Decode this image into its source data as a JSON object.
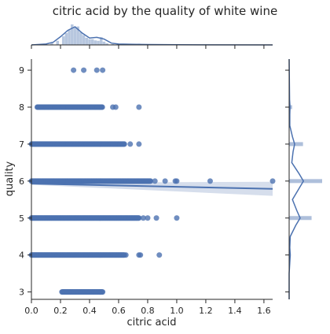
{
  "chart_data": {
    "type": "scatter",
    "title": "citric acid by the quality of white wine",
    "xlabel": "citric acid",
    "ylabel": "quality",
    "xlim": [
      0.0,
      1.66
    ],
    "ylim": [
      2.8,
      9.3
    ],
    "x_ticks": [
      "0.0",
      "0.2",
      "0.4",
      "0.6",
      "0.8",
      "1.0",
      "1.2",
      "1.4",
      "1.6"
    ],
    "y_ticks": [
      "3",
      "4",
      "5",
      "6",
      "7",
      "8",
      "9"
    ],
    "grid": false,
    "legend": "none",
    "colors": {
      "points": "#4c72b0",
      "fill": "#c8d3e6",
      "line": "#4c72b0"
    },
    "strips": [
      {
        "quality": 3,
        "ranges": [
          [
            0.21,
            0.49
          ]
        ],
        "extra": []
      },
      {
        "quality": 4,
        "ranges": [
          [
            0.0,
            0.64
          ]
        ],
        "extra": [
          0.65,
          0.74,
          0.75,
          0.88
        ]
      },
      {
        "quality": 5,
        "ranges": [
          [
            0.0,
            0.74
          ]
        ],
        "extra": [
          0.77,
          0.8,
          0.86,
          1.0
        ]
      },
      {
        "quality": 6,
        "ranges": [
          [
            0.0,
            0.82
          ]
        ],
        "extra": [
          0.85,
          0.92,
          0.99,
          1.0,
          1.23,
          1.66
        ]
      },
      {
        "quality": 7,
        "ranges": [
          [
            0.0,
            0.64
          ]
        ],
        "extra": [
          0.68,
          0.74
        ]
      },
      {
        "quality": 8,
        "ranges": [
          [
            0.04,
            0.49
          ]
        ],
        "extra": [
          0.56,
          0.58,
          0.74
        ]
      },
      {
        "quality": 9,
        "ranges": [],
        "extra": [
          0.29,
          0.36,
          0.45,
          0.49
        ]
      }
    ],
    "regression": {
      "x": [
        0.0,
        1.66
      ],
      "y": [
        5.93,
        5.79
      ],
      "ci_low": [
        5.9,
        5.6
      ],
      "ci_high": [
        5.96,
        5.98
      ]
    },
    "top_marginal": {
      "hist_x": [
        0.02,
        0.06,
        0.1,
        0.14,
        0.18,
        0.22,
        0.24,
        0.26,
        0.28,
        0.3,
        0.32,
        0.34,
        0.36,
        0.38,
        0.4,
        0.42,
        0.44,
        0.46,
        0.48,
        0.5,
        0.52,
        0.56,
        0.6,
        0.66,
        0.74
      ],
      "hist_h": [
        0.02,
        0.03,
        0.05,
        0.1,
        0.2,
        0.42,
        0.58,
        0.72,
        1.0,
        0.85,
        0.9,
        0.62,
        0.48,
        0.35,
        0.28,
        0.28,
        0.22,
        0.2,
        0.38,
        0.16,
        0.08,
        0.04,
        0.03,
        0.02,
        0.06
      ],
      "kde_x": [
        0.0,
        0.1,
        0.15,
        0.2,
        0.25,
        0.3,
        0.35,
        0.4,
        0.45,
        0.5,
        0.55,
        0.6,
        0.7,
        0.8,
        1.0,
        1.66
      ],
      "kde_y": [
        0.0,
        0.05,
        0.15,
        0.45,
        0.8,
        1.0,
        0.65,
        0.38,
        0.42,
        0.32,
        0.1,
        0.05,
        0.03,
        0.02,
        0.01,
        0.0
      ]
    },
    "right_marginal": {
      "hist": [
        {
          "q": 4,
          "h": 0.05
        },
        {
          "q": 5,
          "h": 0.68
        },
        {
          "q": 6,
          "h": 1.0
        },
        {
          "q": 7,
          "h": 0.42
        },
        {
          "q": 8,
          "h": 0.09
        }
      ],
      "kde_q": [
        2.8,
        3.5,
        3.8,
        4.0,
        4.2,
        4.5,
        4.8,
        5.0,
        5.2,
        5.5,
        5.8,
        6.0,
        6.2,
        6.5,
        6.8,
        7.0,
        7.2,
        7.5,
        7.8,
        8.0,
        8.2,
        9.3
      ],
      "kde_w": [
        0.0,
        0.0,
        0.03,
        0.05,
        0.03,
        0.05,
        0.3,
        0.5,
        0.35,
        0.15,
        0.45,
        0.65,
        0.45,
        0.12,
        0.18,
        0.25,
        0.15,
        0.03,
        0.03,
        0.04,
        0.02,
        0.0
      ]
    }
  }
}
